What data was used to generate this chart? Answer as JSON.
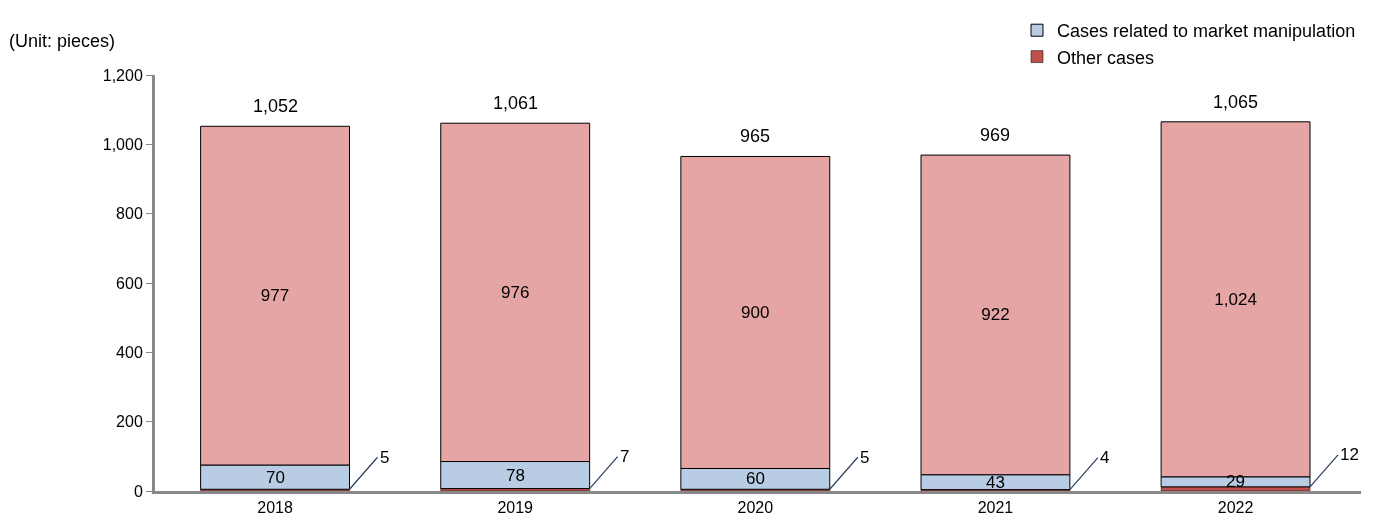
{
  "chart_data": {
    "type": "bar",
    "stacked": true,
    "ylabel": "(Unit: pieces)",
    "categories": [
      "2018",
      "2019",
      "2020",
      "2021",
      "2022"
    ],
    "series": [
      {
        "name": "Other cases",
        "color": "#c0504d",
        "values": [
          5,
          7,
          5,
          4,
          12
        ],
        "value_labels": [
          "5",
          "7",
          "5",
          "4",
          "12"
        ]
      },
      {
        "name": "Cases related to market manipulation",
        "color": "#b8cce4",
        "values": [
          70,
          78,
          60,
          43,
          29
        ],
        "value_labels": [
          "70",
          "78",
          "60",
          "43",
          "29"
        ]
      },
      {
        "color": "#e6a5a5",
        "values": [
          977,
          976,
          900,
          922,
          1024
        ],
        "value_labels": [
          "977",
          "976",
          "900",
          "922",
          "1,024"
        ]
      }
    ],
    "totals": [
      "1,052",
      "1,061",
      "965",
      "969",
      "1,065"
    ],
    "ylim": [
      0,
      1200
    ],
    "yticks": [
      {
        "value": 0,
        "label": "0"
      },
      {
        "value": 200,
        "label": "200"
      },
      {
        "value": 400,
        "label": "400"
      },
      {
        "value": 600,
        "label": "600"
      },
      {
        "value": 800,
        "label": "800"
      },
      {
        "value": 1000,
        "label": "1,000"
      },
      {
        "value": 1200,
        "label": "1,200"
      }
    ],
    "legend": "top right"
  }
}
